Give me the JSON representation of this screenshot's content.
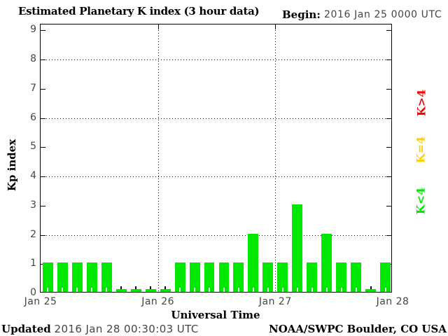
{
  "title": "Estimated Planetary K index (3 hour data)",
  "begin": {
    "label": "Begin:",
    "value": "2016 Jan 25 0000 UTC"
  },
  "legend": {
    "items": [
      {
        "label": "K>4",
        "color": "#ff0000"
      },
      {
        "label": "K=4",
        "color": "#ffd000"
      },
      {
        "label": "K<4",
        "color": "#00e800"
      }
    ]
  },
  "footer": {
    "updated_label": "Updated",
    "updated_value": "2016 Jan 28 00:30:03 UTC",
    "credit": "NOAA/SWPC Boulder, CO USA"
  },
  "chart_data": {
    "type": "bar",
    "title": "Estimated Planetary K index (3 hour data)",
    "xlabel": "Universal Time",
    "ylabel": "Kp index",
    "ylim": [
      0,
      9
    ],
    "yticks": [
      0,
      1,
      2,
      3,
      4,
      5,
      6,
      7,
      8,
      9
    ],
    "grid_y": [
      2,
      4,
      6,
      8
    ],
    "grid": "dotted",
    "bar_color": "#00e800",
    "bin_hours": 3,
    "day_labels": [
      "Jan 25",
      "Jan 26",
      "Jan 27",
      "Jan 28"
    ],
    "days": [
      {
        "date": "Jan 25",
        "kp": [
          1,
          1,
          1,
          1,
          1,
          0,
          0,
          0
        ]
      },
      {
        "date": "Jan 26",
        "kp": [
          0,
          1,
          1,
          1,
          1,
          1,
          2,
          1
        ]
      },
      {
        "date": "Jan 27",
        "kp": [
          1,
          3,
          1,
          2,
          1,
          1,
          0,
          1
        ]
      }
    ],
    "values": [
      1,
      1,
      1,
      1,
      1,
      0,
      0,
      0,
      0,
      1,
      1,
      1,
      1,
      1,
      2,
      1,
      1,
      3,
      1,
      2,
      1,
      1,
      0,
      1
    ]
  }
}
